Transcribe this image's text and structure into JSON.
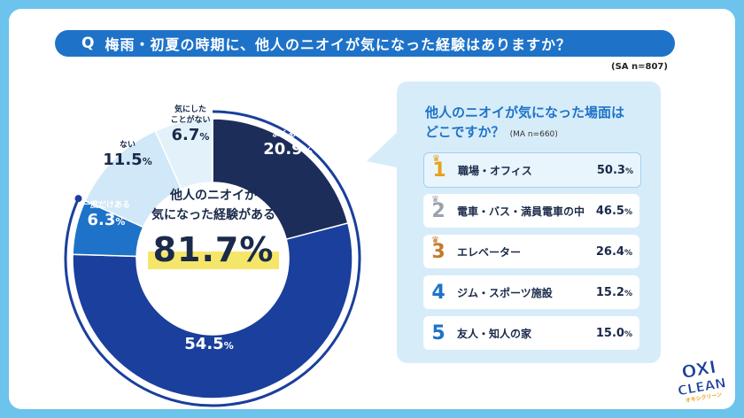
{
  "question": {
    "badge": "Q",
    "text": "梅雨・初夏の時期に、他人のニオイが気になった経験はありますか？",
    "sample": "(SA n=807)"
  },
  "center": {
    "line1": "他人のニオイが",
    "line2": "気になった経験がある",
    "value": "81.7%"
  },
  "chart_data": {
    "type": "pie",
    "title": "梅雨・初夏の時期に、他人のニオイが気になった経験はありますか？",
    "slices": [
      {
        "name": "よくある",
        "value": 20.9,
        "color": "#1c2d5a"
      },
      {
        "name": "たまにある",
        "value": 54.5,
        "color": "#1a3f9c"
      },
      {
        "name": "一度だけある",
        "value": 6.3,
        "color": "#1e73c8"
      },
      {
        "name": "ない",
        "value": 11.5,
        "color": "#d0e8f7"
      },
      {
        "name": "気にしたことがない",
        "value": 6.7,
        "color": "#e3f1fb"
      }
    ],
    "highlight_total": 81.7
  },
  "segment_labels": [
    {
      "name": "よくある",
      "value": "20.9",
      "color": "#ffffff"
    },
    {
      "name": "たまにある",
      "value": "54.5",
      "color": "#ffffff"
    },
    {
      "name": "一度だけある",
      "value": "6.3",
      "color": "#ffffff"
    },
    {
      "name": "ない",
      "value": "11.5",
      "color": "#1a2a4a"
    },
    {
      "name_l1": "気にした",
      "name_l2": "ことがない",
      "value": "6.7",
      "color": "#1a2a4a"
    }
  ],
  "percent_sign": "%",
  "panel": {
    "title_l1": "他人のニオイが気になった場面は",
    "title_l2": "どこですか？",
    "sample": "(MA n=660)",
    "items": [
      {
        "rank": "1",
        "label": "職場・オフィス",
        "value": "50.3",
        "color": "#e6a21a"
      },
      {
        "rank": "2",
        "label": "電車・バス・満員電車の中",
        "value": "46.5",
        "color": "#9aa2ad"
      },
      {
        "rank": "3",
        "label": "エレベーター",
        "value": "26.4",
        "color": "#c47a2a"
      },
      {
        "rank": "4",
        "label": "ジム・スポーツ施設",
        "value": "15.2",
        "color": "#1e73c8"
      },
      {
        "rank": "5",
        "label": "友人・知人の家",
        "value": "15.0",
        "color": "#1e73c8"
      }
    ]
  },
  "logo": {
    "l1": "OXI",
    "l2": "CLEAN",
    "l3": "オキシクリーン"
  }
}
